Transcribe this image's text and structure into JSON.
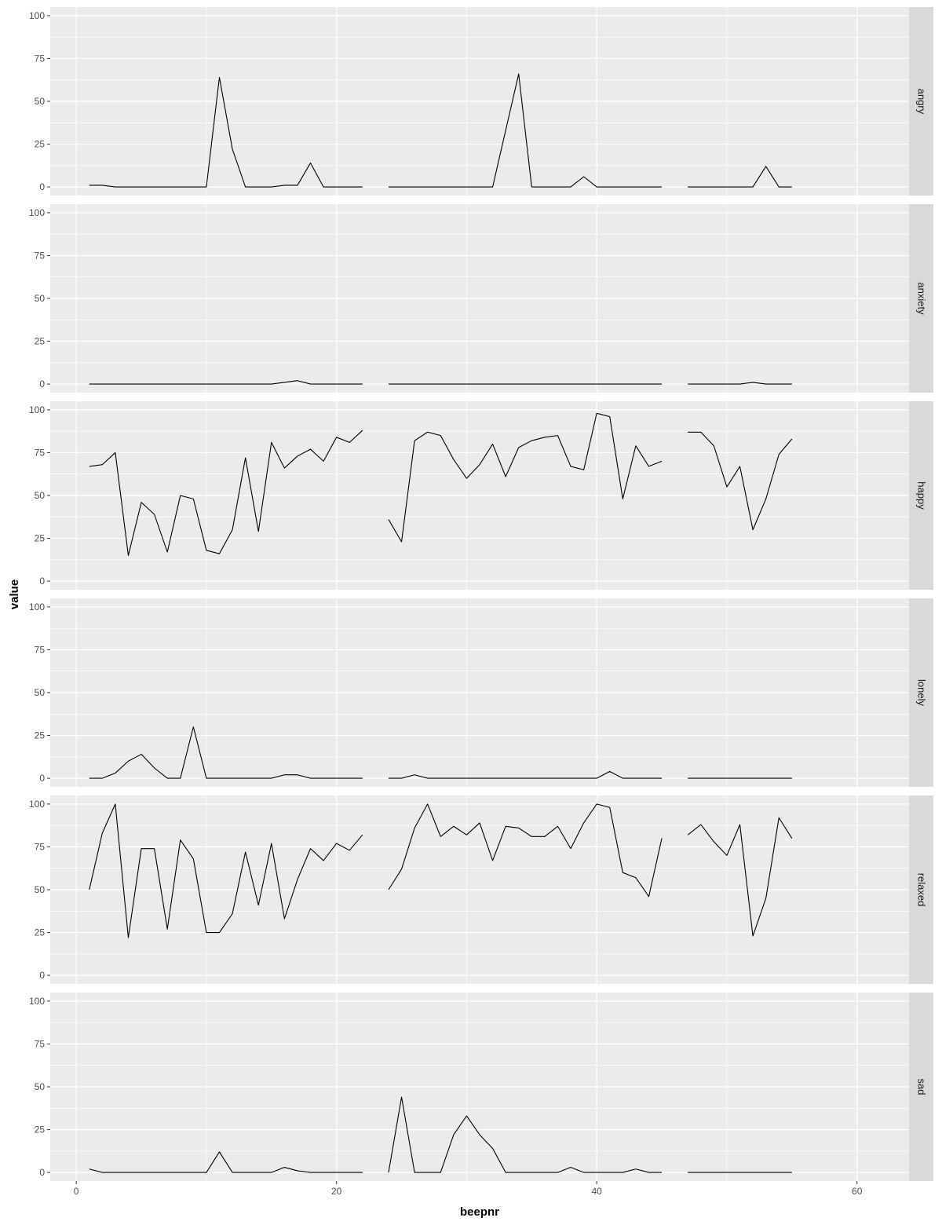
{
  "chart_data": {
    "type": "line",
    "xlabel": "beepnr",
    "ylabel": "value",
    "xlim": [
      -2,
      64
    ],
    "ylim": [
      -5,
      105
    ],
    "x_ticks": [
      0,
      20,
      40,
      60
    ],
    "x_tick_labels": [
      "0",
      "20",
      "40",
      "60"
    ],
    "y_ticks": [
      0,
      25,
      50,
      75,
      100
    ],
    "y_tick_labels": [
      "0",
      "25",
      "50",
      "75",
      "100"
    ],
    "grid": true,
    "facet_layout": "vertical",
    "x": [
      1,
      2,
      3,
      4,
      5,
      6,
      7,
      8,
      9,
      10,
      11,
      12,
      13,
      14,
      15,
      16,
      17,
      18,
      19,
      20,
      21,
      22,
      23,
      24,
      25,
      26,
      27,
      28,
      29,
      30,
      31,
      32,
      33,
      34,
      35,
      36,
      37,
      38,
      39,
      40,
      41,
      42,
      43,
      44,
      45,
      46,
      47,
      48,
      49,
      50,
      51,
      52,
      53,
      54,
      55
    ],
    "facets": [
      {
        "label": "angry",
        "values": [
          1,
          1,
          0,
          0,
          0,
          0,
          0,
          0,
          0,
          0,
          64,
          22,
          0,
          0,
          0,
          1,
          1,
          14,
          0,
          0,
          0,
          0,
          null,
          0,
          0,
          0,
          0,
          0,
          0,
          0,
          0,
          0,
          33,
          66,
          0,
          0,
          0,
          0,
          6,
          0,
          0,
          0,
          0,
          0,
          0,
          null,
          0,
          0,
          0,
          0,
          0,
          0,
          12,
          0,
          0
        ]
      },
      {
        "label": "anxiety",
        "values": [
          0,
          0,
          0,
          0,
          0,
          0,
          0,
          0,
          0,
          0,
          0,
          0,
          0,
          0,
          0,
          1,
          2,
          0,
          0,
          0,
          0,
          0,
          null,
          0,
          0,
          0,
          0,
          0,
          0,
          0,
          0,
          0,
          0,
          0,
          0,
          0,
          0,
          0,
          0,
          0,
          0,
          0,
          0,
          0,
          0,
          null,
          0,
          0,
          0,
          0,
          0,
          1,
          0,
          0,
          0
        ]
      },
      {
        "label": "happy",
        "values": [
          67,
          68,
          75,
          15,
          46,
          39,
          17,
          50,
          48,
          18,
          16,
          30,
          72,
          29,
          81,
          66,
          73,
          77,
          70,
          84,
          81,
          88,
          null,
          36,
          23,
          82,
          87,
          85,
          71,
          60,
          68,
          80,
          61,
          78,
          82,
          84,
          85,
          67,
          65,
          98,
          96,
          48,
          79,
          67,
          70,
          null,
          87,
          87,
          79,
          55,
          67,
          30,
          48,
          74,
          83
        ]
      },
      {
        "label": "lonely",
        "values": [
          0,
          0,
          3,
          10,
          14,
          6,
          0,
          0,
          30,
          0,
          0,
          0,
          0,
          0,
          0,
          2,
          2,
          0,
          0,
          0,
          0,
          0,
          null,
          0,
          0,
          2,
          0,
          0,
          0,
          0,
          0,
          0,
          0,
          0,
          0,
          0,
          0,
          0,
          0,
          0,
          4,
          0,
          0,
          0,
          0,
          null,
          0,
          0,
          0,
          0,
          0,
          0,
          0,
          0,
          0
        ]
      },
      {
        "label": "relaxed",
        "values": [
          50,
          83,
          100,
          22,
          74,
          74,
          27,
          79,
          68,
          25,
          25,
          36,
          72,
          41,
          77,
          33,
          56,
          74,
          67,
          77,
          73,
          82,
          null,
          50,
          62,
          86,
          100,
          81,
          87,
          82,
          89,
          67,
          87,
          86,
          81,
          81,
          87,
          74,
          89,
          100,
          98,
          60,
          57,
          46,
          80,
          null,
          82,
          88,
          78,
          70,
          88,
          23,
          45,
          92,
          80
        ]
      },
      {
        "label": "sad",
        "values": [
          2,
          0,
          0,
          0,
          0,
          0,
          0,
          0,
          0,
          0,
          12,
          0,
          0,
          0,
          0,
          3,
          1,
          0,
          0,
          0,
          0,
          0,
          null,
          0,
          44,
          0,
          0,
          0,
          22,
          33,
          22,
          14,
          0,
          0,
          0,
          0,
          0,
          3,
          0,
          0,
          0,
          0,
          2,
          0,
          0,
          null,
          0,
          0,
          0,
          0,
          0,
          0,
          0,
          0,
          0
        ]
      }
    ]
  }
}
